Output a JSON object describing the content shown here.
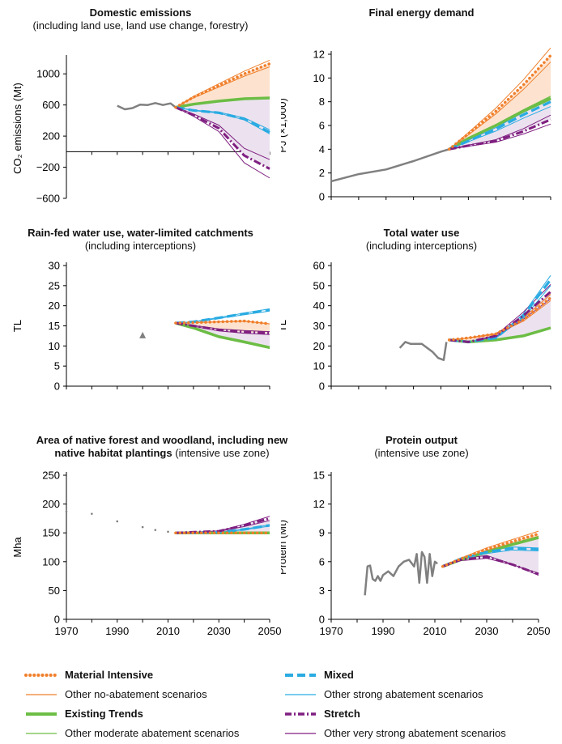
{
  "colors": {
    "orange": "#f07f2b",
    "green": "#6cbd45",
    "blue": "#29abe2",
    "purple": "#7f1f80",
    "grey": "#808080"
  },
  "panels": [
    {
      "id": "domestic-emissions",
      "title_bold": "Domestic emissions",
      "title_rest": "(including land use, land use change, forestry)",
      "ylabel": "CO₂ emissions (Mt)",
      "yticks": [
        "1000",
        "600",
        "200",
        "−200",
        "−600"
      ]
    },
    {
      "id": "final-energy-demand",
      "title_bold": "Final energy demand",
      "title_rest": "",
      "ylabel": "PJ (×1,000)",
      "yticks": [
        "12",
        "10",
        "8",
        "6",
        "4",
        "2",
        "0"
      ]
    },
    {
      "id": "rainfed-water-use",
      "title_bold": "Rain-fed water use, water-limited catchments",
      "title_rest": "(including interceptions)",
      "ylabel": "TL",
      "yticks": [
        "30",
        "25",
        "20",
        "15",
        "10",
        "5",
        "0"
      ]
    },
    {
      "id": "total-water-use",
      "title_bold": "Total water use",
      "title_rest": "(including interceptions)",
      "ylabel": "TL",
      "yticks": [
        "60",
        "50",
        "40",
        "30",
        "20",
        "10",
        "0"
      ]
    },
    {
      "id": "native-forest-area",
      "title_bold": "Area of native forest and woodland, including new",
      "title_bold2": "native habitat plantings",
      "title_rest": "(intensive use zone)",
      "ylabel": "Mha",
      "yticks": [
        "250",
        "200",
        "150",
        "100",
        "50",
        "0"
      ],
      "xticks": [
        "1970",
        "1990",
        "2010",
        "2030",
        "2050"
      ]
    },
    {
      "id": "protein-output",
      "title_bold": "Protein output",
      "title_rest": "(intensive use zone)",
      "ylabel": "Protein (Mt)",
      "yticks": [
        "15",
        "12",
        "9",
        "6",
        "3",
        "0"
      ],
      "xticks": [
        "1970",
        "1990",
        "2010",
        "2030",
        "2050"
      ]
    }
  ],
  "legend": [
    {
      "key": "material-intensive",
      "label": "Material Intensive",
      "bold": true
    },
    {
      "key": "other-no-abatement",
      "label": "Other no-abatement scenarios",
      "bold": false
    },
    {
      "key": "existing-trends",
      "label": "Existing Trends",
      "bold": true
    },
    {
      "key": "other-moderate",
      "label": "Other moderate abatement scenarios",
      "bold": false
    },
    {
      "key": "mixed",
      "label": "Mixed",
      "bold": true
    },
    {
      "key": "other-strong",
      "label": "Other strong abatement scenarios",
      "bold": false
    },
    {
      "key": "stretch",
      "label": "Stretch",
      "bold": true
    },
    {
      "key": "other-very-strong",
      "label": "Other very strong abatement scenarios",
      "bold": false
    }
  ],
  "chart_data": [
    {
      "type": "line",
      "title": "Domestic emissions",
      "subtitle": "(including land use, land use change, forestry)",
      "ylabel": "CO₂ emissions (Mt)",
      "ylim": [
        -600,
        1200
      ],
      "xlim": [
        1970,
        2050
      ],
      "series": [
        {
          "name": "Historical",
          "x": [
            1990,
            1993,
            1996,
            1999,
            2002,
            2005,
            2008,
            2011,
            2013
          ],
          "values": [
            590,
            545,
            560,
            605,
            600,
            625,
            600,
            620,
            570
          ]
        },
        {
          "name": "Material Intensive",
          "x": [
            2013,
            2020,
            2030,
            2040,
            2050
          ],
          "values": [
            570,
            700,
            850,
            1000,
            1130
          ]
        },
        {
          "name": "Existing Trends",
          "x": [
            2013,
            2020,
            2030,
            2040,
            2050
          ],
          "values": [
            570,
            610,
            650,
            680,
            690
          ]
        },
        {
          "name": "Mixed",
          "x": [
            2013,
            2020,
            2030,
            2040,
            2050
          ],
          "values": [
            570,
            530,
            500,
            420,
            250
          ]
        },
        {
          "name": "Stretch",
          "x": [
            2013,
            2020,
            2030,
            2040,
            2050
          ],
          "values": [
            570,
            470,
            300,
            -50,
            -220
          ]
        }
      ]
    },
    {
      "type": "line",
      "title": "Final energy demand",
      "ylabel": "PJ (×1,000)",
      "ylim": [
        0,
        12
      ],
      "xlim": [
        1970,
        2050
      ],
      "series": [
        {
          "name": "Historical",
          "x": [
            1970,
            1980,
            1990,
            2000,
            2010,
            2013
          ],
          "values": [
            1.3,
            1.9,
            2.3,
            3.0,
            3.8,
            4.0
          ]
        },
        {
          "name": "Material Intensive",
          "x": [
            2013,
            2020,
            2030,
            2040,
            2050
          ],
          "values": [
            4.0,
            5.3,
            7.2,
            9.4,
            11.9
          ]
        },
        {
          "name": "Existing Trends",
          "x": [
            2013,
            2020,
            2030,
            2040,
            2050
          ],
          "values": [
            4.0,
            4.9,
            6.0,
            7.2,
            8.3
          ]
        },
        {
          "name": "Mixed",
          "x": [
            2013,
            2020,
            2030,
            2040,
            2050
          ],
          "values": [
            4.0,
            4.7,
            5.7,
            6.9,
            8.0
          ]
        },
        {
          "name": "Stretch",
          "x": [
            2013,
            2020,
            2030,
            2040,
            2050
          ],
          "values": [
            4.0,
            4.3,
            4.7,
            5.5,
            6.5
          ]
        }
      ]
    },
    {
      "type": "line",
      "title": "Rain-fed water use, water-limited catchments",
      "subtitle": "(including interceptions)",
      "ylabel": "TL",
      "ylim": [
        0,
        30
      ],
      "xlim": [
        1970,
        2050
      ],
      "series": [
        {
          "name": "Historical",
          "x": [
            2000
          ],
          "values": [
            12.5
          ]
        },
        {
          "name": "Material Intensive",
          "x": [
            2013,
            2020,
            2030,
            2040,
            2050
          ],
          "values": [
            15.7,
            15.8,
            16.0,
            16.2,
            15.5
          ]
        },
        {
          "name": "Existing Trends",
          "x": [
            2013,
            2020,
            2030,
            2040,
            2050
          ],
          "values": [
            15.7,
            14.5,
            12.3,
            11.0,
            9.6
          ]
        },
        {
          "name": "Mixed",
          "x": [
            2013,
            2020,
            2030,
            2040,
            2050
          ],
          "values": [
            15.7,
            16.0,
            17.0,
            18.0,
            19.0
          ]
        },
        {
          "name": "Stretch",
          "x": [
            2013,
            2020,
            2030,
            2040,
            2050
          ],
          "values": [
            15.7,
            15.0,
            14.0,
            13.5,
            13.2
          ]
        }
      ]
    },
    {
      "type": "line",
      "title": "Total water use",
      "subtitle": "(including interceptions)",
      "ylabel": "TL",
      "ylim": [
        0,
        60
      ],
      "xlim": [
        1970,
        2050
      ],
      "series": [
        {
          "name": "Historical",
          "x": [
            1995,
            1997,
            1999,
            2003,
            2007,
            2009,
            2011,
            2012
          ],
          "values": [
            19,
            22,
            21,
            21,
            17,
            14,
            13,
            22
          ]
        },
        {
          "name": "Material Intensive",
          "x": [
            2013,
            2020,
            2030,
            2040,
            2050
          ],
          "values": [
            23,
            24,
            26,
            33,
            44
          ]
        },
        {
          "name": "Existing Trends",
          "x": [
            2013,
            2020,
            2030,
            2040,
            2050
          ],
          "values": [
            23,
            22,
            23,
            25,
            29
          ]
        },
        {
          "name": "Mixed",
          "x": [
            2013,
            2020,
            2030,
            2040,
            2050
          ],
          "values": [
            23,
            22,
            24,
            35,
            53
          ]
        },
        {
          "name": "Stretch",
          "x": [
            2013,
            2020,
            2030,
            2040,
            2050
          ],
          "values": [
            23,
            22,
            25,
            35,
            47
          ]
        }
      ]
    },
    {
      "type": "line",
      "title": "Area of native forest and woodland, including new native habitat plantings",
      "subtitle": "(intensive use zone)",
      "ylabel": "Mha",
      "ylim": [
        0,
        250
      ],
      "xlim": [
        1970,
        2050
      ],
      "series": [
        {
          "name": "Historical",
          "x": [
            1970,
            1980,
            1990,
            2000,
            2005,
            2010,
            2013
          ],
          "values": [
            187,
            183,
            170,
            160,
            155,
            152,
            150
          ]
        },
        {
          "name": "Material Intensive",
          "x": [
            2013,
            2030,
            2050
          ],
          "values": [
            150,
            150,
            150
          ]
        },
        {
          "name": "Existing Trends",
          "x": [
            2013,
            2030,
            2050
          ],
          "values": [
            150,
            150,
            150
          ]
        },
        {
          "name": "Mixed",
          "x": [
            2013,
            2030,
            2040,
            2050
          ],
          "values": [
            150,
            151,
            156,
            163
          ]
        },
        {
          "name": "Stretch",
          "x": [
            2013,
            2030,
            2040,
            2050
          ],
          "values": [
            150,
            153,
            163,
            175
          ]
        }
      ]
    },
    {
      "type": "line",
      "title": "Protein output",
      "subtitle": "(intensive use zone)",
      "ylabel": "Protein (Mt)",
      "ylim": [
        0,
        15
      ],
      "xlim": [
        1970,
        2050
      ],
      "series": [
        {
          "name": "Historical",
          "x": [
            1983,
            1984,
            1985,
            1986,
            1987,
            1988,
            1989,
            1990,
            1992,
            1994,
            1996,
            1998,
            2000,
            2002,
            2003,
            2004,
            2005,
            2006,
            2007,
            2008,
            2009,
            2010,
            2011
          ],
          "values": [
            2.5,
            5.5,
            5.6,
            4.2,
            4.0,
            4.5,
            4.0,
            4.6,
            5.0,
            4.5,
            5.5,
            6.0,
            6.2,
            5.5,
            6.8,
            3.8,
            7.0,
            6.5,
            3.8,
            6.8,
            4.5,
            6.0,
            5.8
          ]
        },
        {
          "name": "Material Intensive",
          "x": [
            2013,
            2020,
            2030,
            2040,
            2050
          ],
          "values": [
            5.5,
            6.3,
            7.3,
            8.1,
            8.9
          ]
        },
        {
          "name": "Existing Trends",
          "x": [
            2013,
            2020,
            2030,
            2040,
            2050
          ],
          "values": [
            5.5,
            6.2,
            7.0,
            7.8,
            8.5
          ]
        },
        {
          "name": "Mixed",
          "x": [
            2013,
            2020,
            2030,
            2040,
            2050
          ],
          "values": [
            5.5,
            6.3,
            7.0,
            7.4,
            7.3
          ]
        },
        {
          "name": "Stretch",
          "x": [
            2013,
            2020,
            2030,
            2040,
            2050
          ],
          "values": [
            5.5,
            6.2,
            6.5,
            5.7,
            4.7
          ]
        }
      ]
    }
  ]
}
